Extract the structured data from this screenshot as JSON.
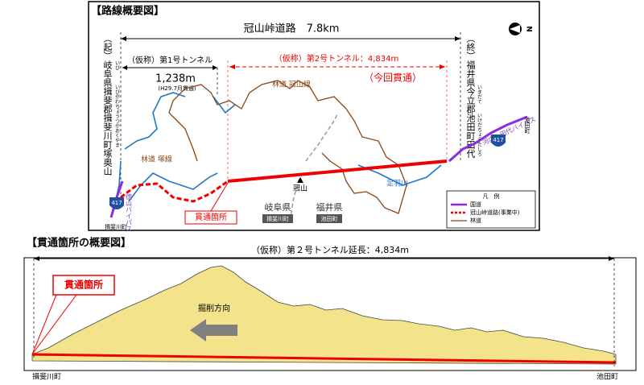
{
  "route_map": {
    "title": "【路線概要図】",
    "road_label": "冠山峠道路　7.8km",
    "start_label": "（起）岐阜県揖斐郡揖斐川町塚奥山",
    "start_ruby": [
      "いび",
      "いびがわちょうつかおくやま"
    ],
    "end_label": "（終）福井県今立郡池田町田代",
    "end_ruby": [
      "いまだて",
      "いけだちょうたしろ"
    ],
    "tunnel1": {
      "name": "（仮称）第1号トンネル",
      "length": "1,238m",
      "note": "(H29.7月貫通)"
    },
    "tunnel2": {
      "name": "（仮称）第2号トンネル：4,834m",
      "note": "（今回貫通）"
    },
    "places": {
      "forest_road_kanmuri": "林道 冠山線",
      "forest_road_tsuka": "林道 塚線",
      "mountain": "冠山",
      "river": "足羽川",
      "gifu": "岐阜県",
      "ibigawa": "揖斐川町",
      "fukui": "福井県",
      "ikeda": "池田町",
      "breakthrough": "貫通箇所",
      "bypass_east": "河内～田代バイパス",
      "bypass_west": "徳山バイパス",
      "ikeda_town": "池田町",
      "ibigawa_town": "揖斐川町",
      "route_number_west": "417",
      "route_number_east": "417"
    },
    "legend": {
      "title": "凡　例",
      "items": [
        "国道",
        "冠山峠道路(事業中)",
        "林道"
      ]
    }
  },
  "profile": {
    "title": "【貫通箇所の概要図】",
    "length_label": "（仮称）第２号トンネル延長：4,834m",
    "breakthrough": "貫通箇所",
    "direction": "掘削方向",
    "left_town": "揖斐川町",
    "right_town": "池田町"
  }
}
